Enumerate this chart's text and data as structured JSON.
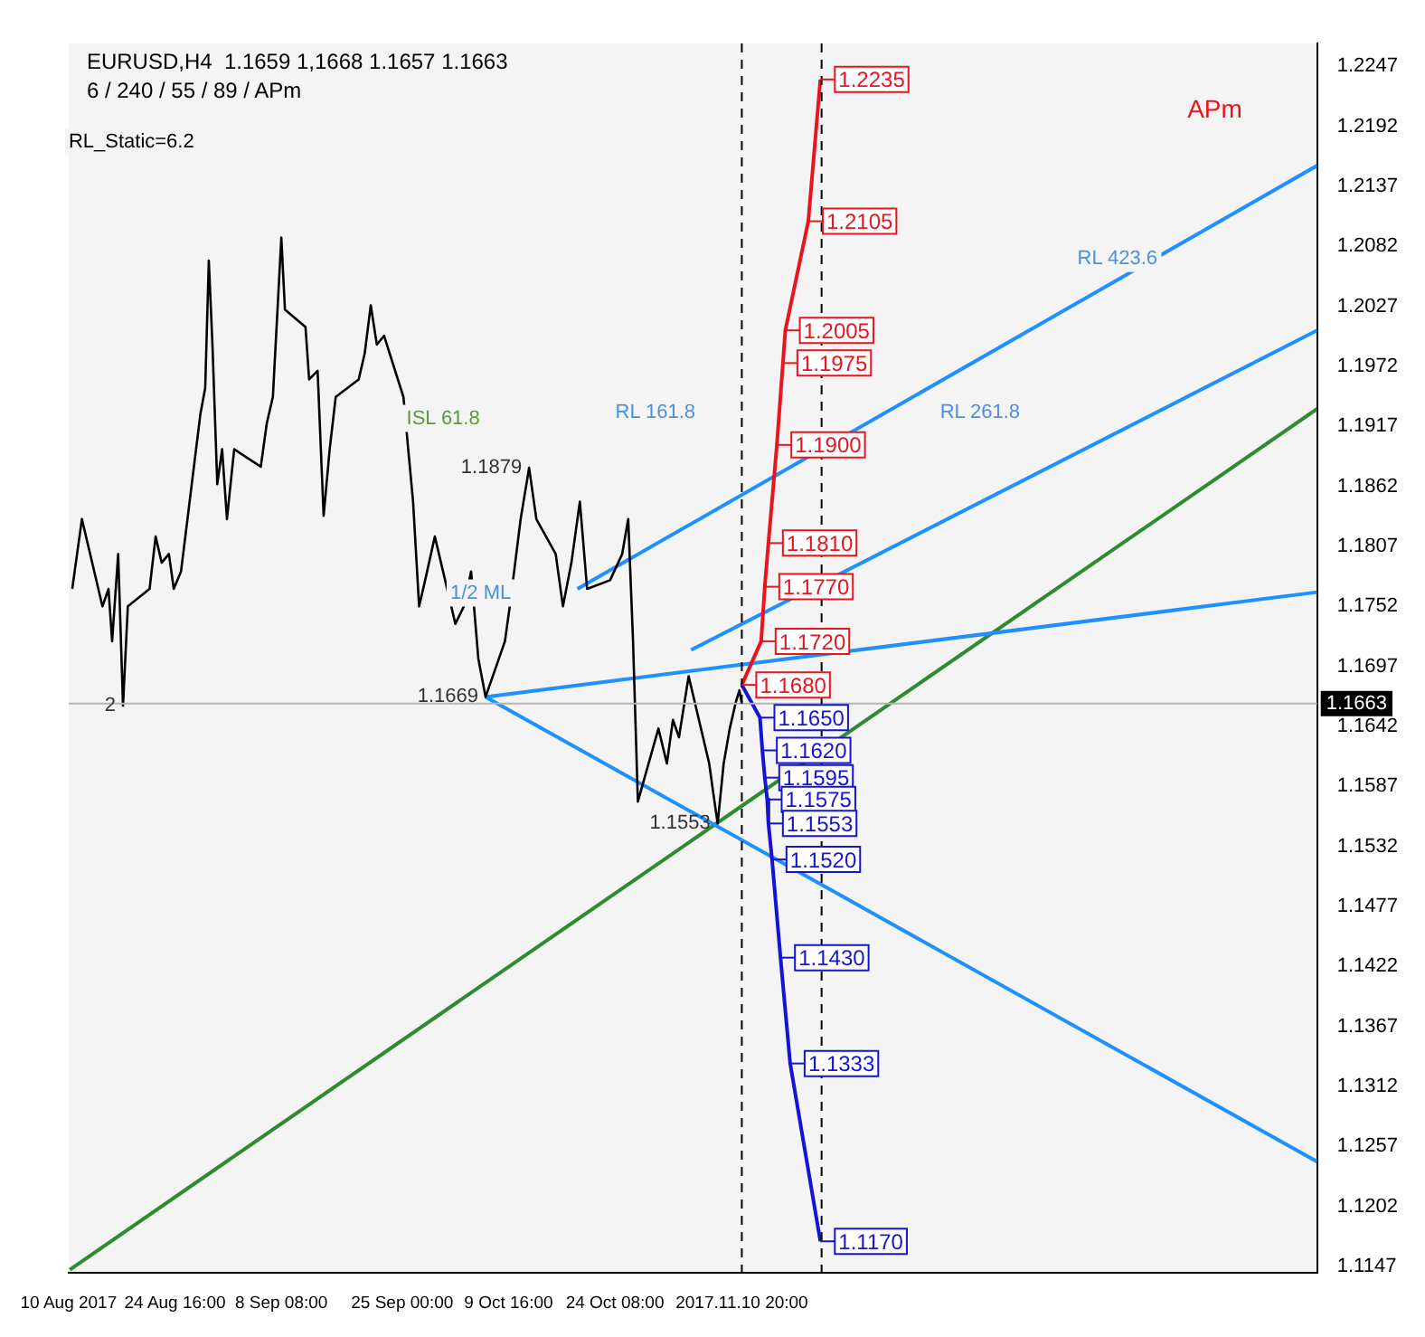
{
  "chart_data": {
    "type": "line",
    "title": "EURUSD,H4  1.1659 1,1668 1.1657 1.1663",
    "subtitle": "6 / 240 / 55 / 89 / APm",
    "annotations": [
      "RL_Static=6.2",
      "APm",
      "1/2 ML",
      "ISL 61.8",
      "RL 161.8",
      "RL 261.8",
      "RL 423.6",
      {
        "text": "1.1879",
        "x": "2017-10-12T12:00",
        "y": 1.1879
      },
      {
        "text": "1.1669",
        "x": "2017-10-06T12:00",
        "y": 1.1669
      },
      {
        "text": "1.1553",
        "x": "2017-11-07T12:00",
        "y": 1.1553
      },
      {
        "text": "2",
        "x": "2017-08-17T12:00",
        "y": 1.1661
      }
    ],
    "x": [
      "2017-08-10T12:00",
      "2017-08-11T20:00",
      "2017-08-14T16:00",
      "2017-08-15T12:00",
      "2017-08-16T00:00",
      "2017-08-16T20:00",
      "2017-08-17T12:00",
      "2017-08-18T04:00",
      "2017-08-21T04:00",
      "2017-08-22T00:00",
      "2017-08-22T20:00",
      "2017-08-23T20:00",
      "2017-08-24T12:00",
      "2017-08-25T12:00",
      "2017-08-28T04:00",
      "2017-08-28T20:00",
      "2017-08-29T08:00",
      "2017-08-29T20:00",
      "2017-08-30T12:00",
      "2017-08-31T04:00",
      "2017-08-31T20:00",
      "2017-09-01T20:00",
      "2017-09-05T12:00",
      "2017-09-06T08:00",
      "2017-09-07T04:00",
      "2017-09-08T08:00",
      "2017-09-08T20:00",
      "2017-09-11T16:00",
      "2017-09-12T04:00",
      "2017-09-13T08:00",
      "2017-09-14T04:00",
      "2017-09-15T00:00",
      "2017-09-15T20:00",
      "2017-09-19T00:00",
      "2017-09-19T20:00",
      "2017-09-20T16:00",
      "2017-09-21T12:00",
      "2017-09-22T12:00",
      "2017-09-25T04:00",
      "2017-09-26T12:00",
      "2017-09-27T08:00",
      "2017-09-28T04:00",
      "2017-09-29T12:00",
      "2017-10-02T08:00",
      "2017-10-03T12:00",
      "2017-10-04T12:00",
      "2017-10-05T12:00",
      "2017-10-06T12:00",
      "2017-10-09T04:00",
      "2017-10-09T20:00",
      "2017-10-11T08:00",
      "2017-10-12T12:00",
      "2017-10-13T12:00",
      "2017-10-16T04:00",
      "2017-10-17T04:00",
      "2017-10-18T08:00",
      "2017-10-19T12:00",
      "2017-10-20T12:00",
      "2017-10-23T16:00",
      "2017-10-25T08:00",
      "2017-10-26T04:00",
      "2017-10-26T20:00",
      "2017-10-27T12:00",
      "2017-10-30T08:00",
      "2017-10-31T12:00",
      "2017-11-01T08:00",
      "2017-11-02T04:00",
      "2017-11-03T12:00",
      "2017-11-06T08:00",
      "2017-11-07T00:00",
      "2017-11-07T12:00",
      "2017-11-08T08:00",
      "2017-11-09T04:00",
      "2017-11-10T00:00",
      "2017-11-10T12:00",
      "2017-11-10T20:00"
    ],
    "xlim": [
      "2017-08-10T00:00",
      "2018-01-29T04:00"
    ],
    "xticks": [
      {
        "value": "2017-08-10T00:00",
        "label": "10 Aug 2017"
      },
      {
        "value": "2017-08-24T16:00",
        "label": "24 Aug 16:00"
      },
      {
        "value": "2017-09-08T08:00",
        "label": "8 Sep 08:00"
      },
      {
        "value": "2017-09-25T00:00",
        "label": "25 Sep 00:00"
      },
      {
        "value": "2017-10-09T16:00",
        "label": "9 Oct 16:00"
      },
      {
        "value": "2017-10-24T08:00",
        "label": "24 Oct 08:00"
      },
      {
        "value": "2017-11-10T20:00",
        "label": "2017.11.10 20:00"
      }
    ],
    "ylim": [
      1.1141,
      1.2268
    ],
    "yticks": [
      1.1147,
      1.1202,
      1.1257,
      1.1312,
      1.1367,
      1.1422,
      1.1477,
      1.1532,
      1.1587,
      1.1642,
      1.1697,
      1.1752,
      1.1807,
      1.1862,
      1.1917,
      1.1972,
      1.2027,
      1.2082,
      1.2137,
      1.2192,
      1.2247
    ],
    "series": [
      {
        "color": "#000000",
        "values": [
          1.1768,
          1.1832,
          1.1752,
          1.1768,
          1.172,
          1.18,
          1.1661,
          1.1752,
          1.1768,
          1.1816,
          1.1792,
          1.18,
          1.1768,
          1.1784,
          1.1928,
          1.1952,
          1.2069,
          1.1992,
          1.1864,
          1.1896,
          1.1832,
          1.1896,
          1.188,
          1.192,
          1.1944,
          1.209,
          1.2024,
          1.2008,
          1.196,
          1.1968,
          1.1835,
          1.1896,
          1.1944,
          1.196,
          1.1984,
          1.2028,
          1.1992,
          1.2,
          1.1944,
          1.1848,
          1.1752,
          1.1776,
          1.1816,
          1.1736,
          1.1752,
          1.1784,
          1.1704,
          1.1669,
          1.172,
          1.1752,
          1.1832,
          1.1879,
          1.1832,
          1.18,
          1.1752,
          1.1792,
          1.1848,
          1.1768,
          1.1776,
          1.18,
          1.1832,
          1.172,
          1.1573,
          1.164,
          1.1608,
          1.1648,
          1.1632,
          1.1688,
          1.1608,
          1.1576,
          1.1553,
          1.1608,
          1.164,
          1.1664,
          1.1675,
          1.1663
        ]
      },
      {
        "color": "#e8141e",
        "x": [
          "2017-11-10T20:00",
          "2017-11-13T12:00",
          "2017-11-14T00:00",
          "2017-11-14T12:00",
          "2017-11-15T16:00",
          "2017-11-16T12:00",
          "2017-11-16T20:00",
          "2017-11-20T00:00",
          "2017-11-21T16:00"
        ],
        "values": [
          1.168,
          1.172,
          1.177,
          1.181,
          1.19,
          1.1975,
          1.2005,
          1.2105,
          1.2235
        ],
        "value_labels": [
          "1.1680",
          "1.1720",
          "1.1770",
          "1.1810",
          "1.1900",
          "1.1975",
          "1.2005",
          "1.2105",
          "1.2235"
        ]
      },
      {
        "color": "#1414d2",
        "x": [
          "2017-11-10T20:00",
          "2017-11-13T08:00",
          "2017-11-13T16:00",
          "2017-11-14T00:00",
          "2017-11-14T08:00",
          "2017-11-14T12:00",
          "2017-11-15T00:00",
          "2017-11-16T04:00",
          "2017-11-17T12:00",
          "2017-11-21T16:00"
        ],
        "values": [
          1.168,
          1.165,
          1.162,
          1.1595,
          1.1575,
          1.1553,
          1.152,
          1.143,
          1.1333,
          1.117
        ],
        "value_labels": [
          null,
          "1.1650",
          "1.1620",
          "1.1595",
          "1.1575",
          "1.1553",
          "1.1520",
          "1.1430",
          "1.1333",
          "1.1170"
        ]
      },
      {
        "color": "#1e90ff",
        "x": [
          "2017-10-06T12:00",
          "2018-01-29T04:00"
        ],
        "values": [
          1.1669,
          1.1765
        ]
      },
      {
        "color": "#1e90ff",
        "x": [
          "2017-10-06T12:00",
          "2018-01-29T04:00"
        ],
        "values": [
          1.1669,
          1.1243
        ]
      },
      {
        "color": "#1e90ff",
        "x": [
          "2017-11-03T20:00",
          "2018-01-29T04:00"
        ],
        "values": [
          1.1712,
          1.2005
        ]
      },
      {
        "color": "#1e90ff",
        "x": [
          "2017-10-19T04:00",
          "2018-01-29T04:00"
        ],
        "values": [
          1.1768,
          1.2156
        ]
      },
      {
        "color": "#2e8b2e",
        "x": [
          "2017-08-10T04:00",
          "2018-01-29T04:00"
        ],
        "values": [
          1.1144,
          1.1933
        ]
      }
    ],
    "ref_lines": [
      {
        "axis": "y",
        "value": 1.1663,
        "label": "1.1663",
        "color": "#b4b4b4"
      },
      {
        "axis": "x",
        "value": "2017-11-10T20:00",
        "color": "#000000",
        "line_style": "dashed"
      },
      {
        "axis": "x",
        "value": "2017-11-21T20:00",
        "color": "#000000",
        "line_style": "dashed"
      }
    ]
  }
}
